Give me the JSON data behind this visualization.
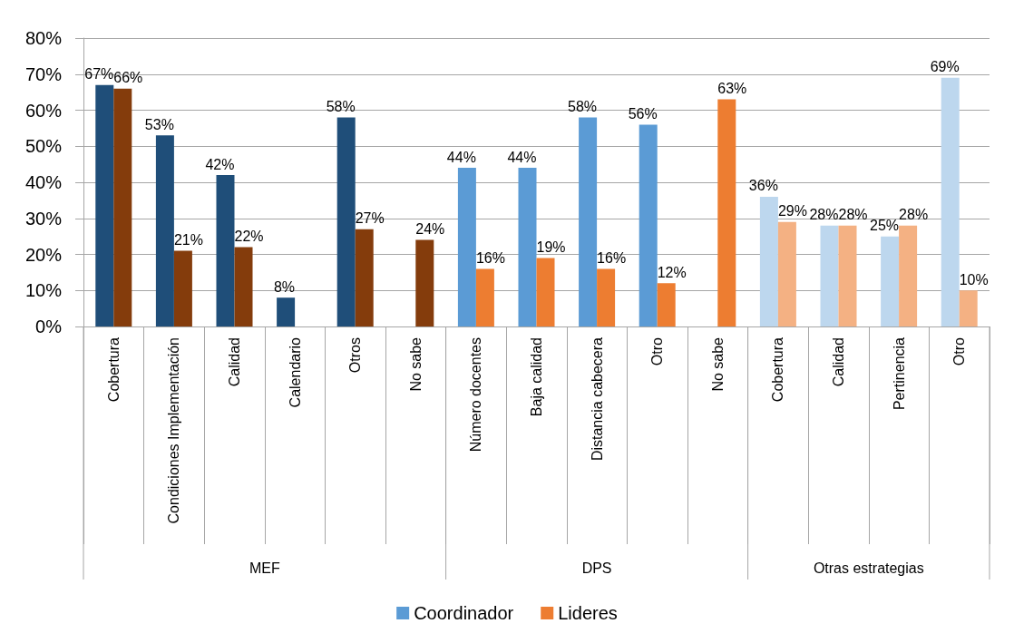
{
  "chart_data": {
    "type": "bar",
    "categories": [
      "Cobertura",
      "Condiciones Implementación",
      "Calidad",
      "Calendario",
      "Otros",
      "No sabe",
      "Número docentes",
      "Baja calidad",
      "Distancia cabecera",
      "Otro",
      "No sabe",
      "Cobertura",
      "Calidad",
      "Pertinencia",
      "Otro"
    ],
    "series": [
      {
        "name": "Coordinador",
        "color": "#5b9bd5",
        "values": [
          67,
          53,
          42,
          8,
          58,
          null,
          44,
          44,
          58,
          56,
          null,
          36,
          28,
          25,
          69
        ],
        "colors": [
          "#1f4e79",
          "#1f4e79",
          "#1f4e79",
          "#1f4e79",
          "#1f4e79",
          null,
          "#5b9bd5",
          "#5b9bd5",
          "#5b9bd5",
          "#5b9bd5",
          null,
          "#bdd7ee",
          "#bdd7ee",
          "#bdd7ee",
          "#bdd7ee"
        ],
        "value_labels": [
          "67%",
          "53%",
          "42%",
          "8%",
          "58%",
          null,
          "44%",
          "44%",
          "58%",
          "56%",
          null,
          "36%",
          "28%",
          "25%",
          "69%"
        ]
      },
      {
        "name": "Lideres",
        "color": "#ed7d31",
        "values": [
          66,
          21,
          22,
          null,
          27,
          24,
          16,
          19,
          16,
          12,
          63,
          29,
          28,
          28,
          10
        ],
        "colors": [
          "#843c0c",
          "#843c0c",
          "#843c0c",
          null,
          "#843c0c",
          "#843c0c",
          "#ed7d31",
          "#ed7d31",
          "#ed7d31",
          "#ed7d31",
          "#ed7d31",
          "#f4b183",
          "#f4b183",
          "#f4b183",
          "#f4b183"
        ],
        "value_labels": [
          "66%",
          "21%",
          "22%",
          null,
          "27%",
          "24%",
          "16%",
          "19%",
          "16%",
          "12%",
          "63%",
          "29%",
          "28%",
          "28%",
          "10%"
        ]
      }
    ],
    "annotations": [
      "MEF",
      "DPS",
      "Otras estrategias"
    ],
    "ylim": [
      0,
      80
    ],
    "yticks": [
      {
        "value": 0,
        "label": "0%"
      },
      {
        "value": 10,
        "label": "10%"
      },
      {
        "value": 20,
        "label": "20%"
      },
      {
        "value": 30,
        "label": "30%"
      },
      {
        "value": 40,
        "label": "40%"
      },
      {
        "value": 50,
        "label": "50%"
      },
      {
        "value": 60,
        "label": "60%"
      },
      {
        "value": 70,
        "label": "70%"
      },
      {
        "value": 80,
        "label": "80%"
      }
    ],
    "grid": "y",
    "legend": "bottom"
  }
}
